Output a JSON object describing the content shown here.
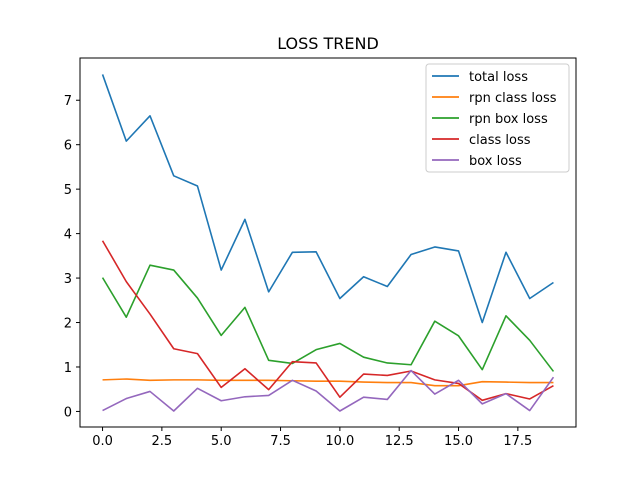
{
  "chart_data": {
    "type": "line",
    "title": "LOSS TREND",
    "xlabel": "",
    "ylabel": "",
    "x": [
      0,
      1,
      2,
      3,
      4,
      5,
      6,
      7,
      8,
      9,
      10,
      11,
      12,
      13,
      14,
      15,
      16,
      17,
      18,
      19
    ],
    "xlim": [
      -0.95,
      19.95
    ],
    "ylim": [
      -0.35,
      7.95
    ],
    "x_ticks": [
      0.0,
      2.5,
      5.0,
      7.5,
      10.0,
      12.5,
      15.0,
      17.5
    ],
    "x_tick_labels": [
      "0.0",
      "2.5",
      "5.0",
      "7.5",
      "10.0",
      "12.5",
      "15.0",
      "17.5"
    ],
    "y_ticks": [
      0,
      1,
      2,
      3,
      4,
      5,
      6,
      7
    ],
    "y_tick_labels": [
      "0",
      "1",
      "2",
      "3",
      "4",
      "5",
      "6",
      "7"
    ],
    "grid": false,
    "legend_position": "top-right",
    "series": [
      {
        "name": "total loss",
        "color": "#1f77b4",
        "values": [
          7.58,
          6.08,
          6.65,
          5.3,
          5.07,
          3.18,
          4.32,
          2.69,
          3.58,
          3.59,
          2.54,
          3.03,
          2.81,
          3.53,
          3.7,
          3.61,
          2.0,
          3.58,
          2.54,
          2.9
        ]
      },
      {
        "name": "rpn class loss",
        "color": "#ff7f0e",
        "values": [
          0.71,
          0.73,
          0.7,
          0.71,
          0.71,
          0.7,
          0.7,
          0.7,
          0.69,
          0.68,
          0.68,
          0.66,
          0.65,
          0.65,
          0.58,
          0.58,
          0.67,
          0.66,
          0.65,
          0.65
        ]
      },
      {
        "name": "rpn box loss",
        "color": "#2ca02c",
        "values": [
          3.01,
          2.12,
          3.29,
          3.18,
          2.55,
          1.71,
          2.34,
          1.15,
          1.08,
          1.39,
          1.53,
          1.22,
          1.09,
          1.05,
          2.03,
          1.7,
          0.94,
          2.15,
          1.6,
          0.9
        ]
      },
      {
        "name": "class loss",
        "color": "#d62728",
        "values": [
          3.84,
          2.92,
          2.19,
          1.41,
          1.3,
          0.54,
          0.96,
          0.49,
          1.12,
          1.09,
          0.32,
          0.84,
          0.81,
          0.91,
          0.71,
          0.63,
          0.25,
          0.4,
          0.28,
          0.58
        ]
      },
      {
        "name": "box loss",
        "color": "#9467bd",
        "values": [
          0.02,
          0.29,
          0.45,
          0.01,
          0.52,
          0.24,
          0.33,
          0.36,
          0.7,
          0.46,
          0.01,
          0.32,
          0.27,
          0.92,
          0.39,
          0.7,
          0.17,
          0.4,
          0.02,
          0.77
        ]
      }
    ]
  }
}
